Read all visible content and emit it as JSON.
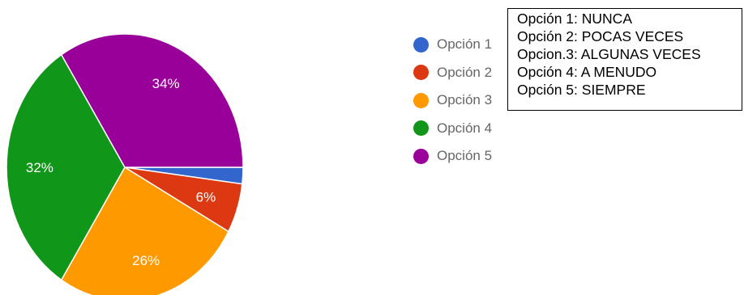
{
  "colors": {
    "opcion1": "#3366cc",
    "opcion2": "#dc3912",
    "opcion3": "#ff9900",
    "opcion4": "#109618",
    "opcion5": "#990099",
    "label_text": "#ffffff",
    "legend_text": "#666666"
  },
  "chart_data": {
    "type": "pie",
    "categories": [
      "Opción 1",
      "Opción 2",
      "Opción 3",
      "Opción 4",
      "Opción 5"
    ],
    "values": [
      2,
      6,
      26,
      32,
      34
    ],
    "value_labels": [
      "",
      "6%",
      "26%",
      "32%",
      "34%"
    ],
    "legend_position": "right",
    "legend": [
      {
        "label": "Opción 1",
        "color": "#3366cc"
      },
      {
        "label": "Opción 2",
        "color": "#dc3912"
      },
      {
        "label": "Opción 3",
        "color": "#ff9900"
      },
      {
        "label": "Opción 4",
        "color": "#109618"
      },
      {
        "label": "Opción 5",
        "color": "#990099"
      }
    ]
  },
  "note_box": {
    "lines": [
      "Opción 1: NUNCA",
      "Opción 2: POCAS VECES",
      "Opcion.3: ALGUNAS VECES",
      "Opción 4: A MENUDO",
      "Opción 5: SIEMPRE"
    ]
  }
}
